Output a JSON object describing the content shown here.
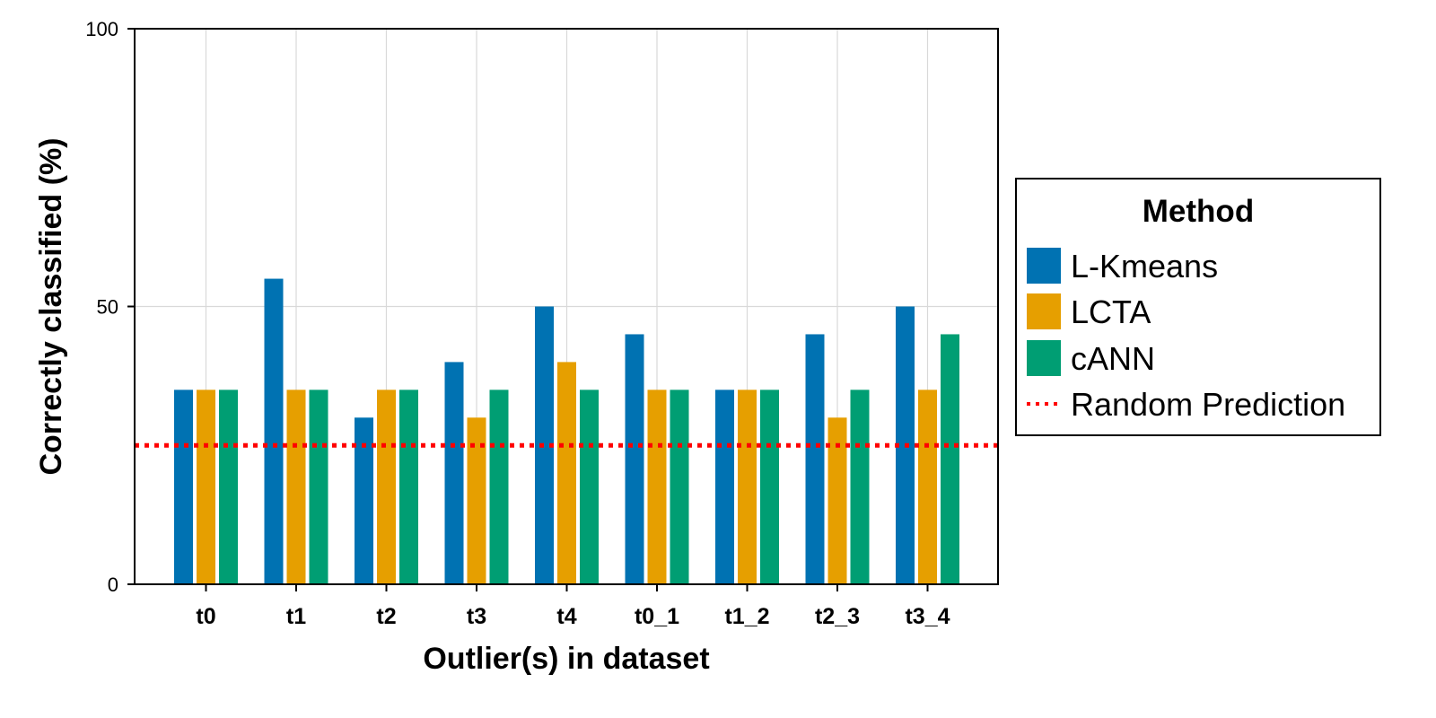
{
  "chart_data": {
    "type": "bar",
    "xlabel": "Outlier(s) in dataset",
    "ylabel": "Correctly classified (%)",
    "ylim": [
      0,
      100
    ],
    "yticks": [
      "0",
      "50",
      "100"
    ],
    "grid": true,
    "categories": [
      "t0",
      "t1",
      "t2",
      "t3",
      "t4",
      "t0_1",
      "t1_2",
      "t2_3",
      "t3_4"
    ],
    "series": [
      {
        "name": "L-Kmeans",
        "color": "#0072B2",
        "values": [
          35,
          55,
          30,
          40,
          50,
          45,
          35,
          45,
          50
        ]
      },
      {
        "name": "LCTA",
        "color": "#E69F00",
        "values": [
          35,
          35,
          35,
          30,
          40,
          35,
          35,
          30,
          35
        ]
      },
      {
        "name": "cANN",
        "color": "#009E73",
        "values": [
          35,
          35,
          35,
          35,
          35,
          35,
          35,
          35,
          45
        ]
      }
    ],
    "reference_line": {
      "name": "Random Prediction",
      "value": 25,
      "color": "#FF0000",
      "style": "dotted"
    },
    "legend": {
      "title": "Method",
      "placement": "right"
    }
  }
}
